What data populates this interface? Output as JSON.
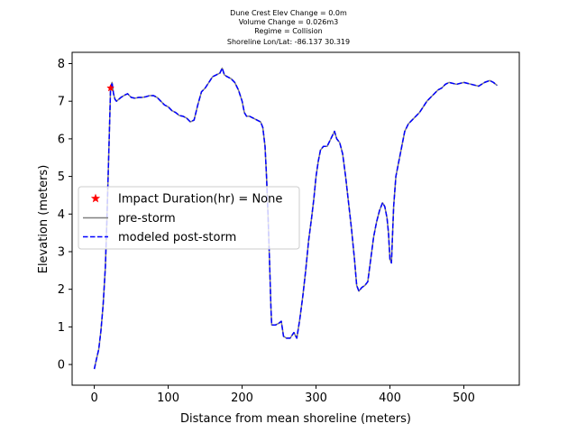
{
  "chart_data": {
    "type": "line",
    "title_lines": [
      "Dune Crest Elev Change = 0.0m",
      "Volume Change = 0.026m3",
      "Regime = Collision",
      "Shoreline Lon/Lat: -86.137 30.319"
    ],
    "xlabel": "Distance from mean shoreline (meters)",
    "ylabel": "Elevation (meters)",
    "xlim": [
      -30,
      575
    ],
    "ylim": [
      -0.55,
      8.3
    ],
    "xticks": [
      0,
      100,
      200,
      300,
      400,
      500
    ],
    "yticks": [
      0,
      1,
      2,
      3,
      4,
      5,
      6,
      7,
      8
    ],
    "grid": false,
    "legend_position": "center-left",
    "legend": [
      {
        "label": "Impact Duration(hr) = None",
        "marker": "star",
        "color": "#ff0000"
      },
      {
        "label": "pre-storm",
        "style": "solid",
        "color": "#808080"
      },
      {
        "label": "modeled post-storm",
        "style": "dashed",
        "color": "#0000ff"
      }
    ],
    "series": [
      {
        "name": "pre-storm",
        "color": "#808080",
        "style": "solid",
        "points": [
          [
            0,
            -0.12
          ],
          [
            3,
            0.15
          ],
          [
            6,
            0.4
          ],
          [
            9,
            0.9
          ],
          [
            12,
            1.6
          ],
          [
            15,
            2.6
          ],
          [
            17,
            3.8
          ],
          [
            19,
            5.2
          ],
          [
            21,
            6.6
          ],
          [
            22,
            7.35
          ],
          [
            24,
            7.5
          ],
          [
            26,
            7.2
          ],
          [
            28,
            7.05
          ],
          [
            30,
            7.0
          ],
          [
            33,
            7.05
          ],
          [
            36,
            7.1
          ],
          [
            40,
            7.15
          ],
          [
            45,
            7.2
          ],
          [
            50,
            7.1
          ],
          [
            55,
            7.08
          ],
          [
            60,
            7.1
          ],
          [
            65,
            7.1
          ],
          [
            70,
            7.12
          ],
          [
            75,
            7.15
          ],
          [
            80,
            7.15
          ],
          [
            85,
            7.1
          ],
          [
            90,
            7.0
          ],
          [
            95,
            6.9
          ],
          [
            100,
            6.85
          ],
          [
            105,
            6.75
          ],
          [
            110,
            6.7
          ],
          [
            115,
            6.62
          ],
          [
            120,
            6.6
          ],
          [
            125,
            6.55
          ],
          [
            130,
            6.45
          ],
          [
            135,
            6.5
          ],
          [
            140,
            6.9
          ],
          [
            145,
            7.25
          ],
          [
            150,
            7.35
          ],
          [
            155,
            7.5
          ],
          [
            160,
            7.65
          ],
          [
            165,
            7.7
          ],
          [
            170,
            7.75
          ],
          [
            173,
            7.88
          ],
          [
            176,
            7.7
          ],
          [
            180,
            7.65
          ],
          [
            185,
            7.6
          ],
          [
            190,
            7.5
          ],
          [
            195,
            7.3
          ],
          [
            200,
            7.0
          ],
          [
            203,
            6.7
          ],
          [
            206,
            6.6
          ],
          [
            210,
            6.6
          ],
          [
            215,
            6.55
          ],
          [
            220,
            6.5
          ],
          [
            225,
            6.45
          ],
          [
            228,
            6.3
          ],
          [
            231,
            5.8
          ],
          [
            233,
            5.0
          ],
          [
            235,
            4.0
          ],
          [
            237,
            2.8
          ],
          [
            239,
            1.5
          ],
          [
            240,
            1.05
          ],
          [
            245,
            1.05
          ],
          [
            250,
            1.1
          ],
          [
            253,
            1.15
          ],
          [
            256,
            0.75
          ],
          [
            260,
            0.7
          ],
          [
            265,
            0.7
          ],
          [
            270,
            0.85
          ],
          [
            274,
            0.7
          ],
          [
            278,
            1.2
          ],
          [
            282,
            1.8
          ],
          [
            286,
            2.5
          ],
          [
            290,
            3.3
          ],
          [
            294,
            3.9
          ],
          [
            297,
            4.4
          ],
          [
            300,
            5.0
          ],
          [
            303,
            5.4
          ],
          [
            306,
            5.7
          ],
          [
            310,
            5.8
          ],
          [
            315,
            5.8
          ],
          [
            320,
            6.0
          ],
          [
            325,
            6.2
          ],
          [
            328,
            6.0
          ],
          [
            332,
            5.9
          ],
          [
            336,
            5.6
          ],
          [
            340,
            5.0
          ],
          [
            344,
            4.3
          ],
          [
            348,
            3.6
          ],
          [
            352,
            2.8
          ],
          [
            355,
            2.1
          ],
          [
            358,
            1.95
          ],
          [
            362,
            2.05
          ],
          [
            366,
            2.1
          ],
          [
            370,
            2.2
          ],
          [
            374,
            2.8
          ],
          [
            378,
            3.4
          ],
          [
            382,
            3.8
          ],
          [
            386,
            4.1
          ],
          [
            390,
            4.3
          ],
          [
            393,
            4.2
          ],
          [
            396,
            3.9
          ],
          [
            398,
            3.5
          ],
          [
            400,
            2.8
          ],
          [
            402,
            2.7
          ],
          [
            405,
            4.2
          ],
          [
            408,
            5.0
          ],
          [
            412,
            5.4
          ],
          [
            416,
            5.8
          ],
          [
            420,
            6.2
          ],
          [
            425,
            6.4
          ],
          [
            430,
            6.5
          ],
          [
            435,
            6.6
          ],
          [
            440,
            6.7
          ],
          [
            445,
            6.85
          ],
          [
            450,
            7.0
          ],
          [
            455,
            7.1
          ],
          [
            460,
            7.2
          ],
          [
            465,
            7.3
          ],
          [
            470,
            7.35
          ],
          [
            475,
            7.45
          ],
          [
            480,
            7.5
          ],
          [
            490,
            7.45
          ],
          [
            500,
            7.5
          ],
          [
            510,
            7.45
          ],
          [
            520,
            7.4
          ],
          [
            528,
            7.5
          ],
          [
            535,
            7.55
          ],
          [
            540,
            7.5
          ],
          [
            545,
            7.42
          ]
        ]
      },
      {
        "name": "modeled post-storm",
        "color": "#0000ff",
        "style": "dashed",
        "points": [
          [
            0,
            -0.12
          ],
          [
            3,
            0.15
          ],
          [
            6,
            0.4
          ],
          [
            9,
            0.9
          ],
          [
            12,
            1.6
          ],
          [
            15,
            2.6
          ],
          [
            17,
            3.8
          ],
          [
            19,
            5.2
          ],
          [
            21,
            6.6
          ],
          [
            22,
            7.35
          ],
          [
            24,
            7.5
          ],
          [
            26,
            7.2
          ],
          [
            28,
            7.05
          ],
          [
            30,
            7.0
          ],
          [
            33,
            7.05
          ],
          [
            36,
            7.1
          ],
          [
            40,
            7.15
          ],
          [
            45,
            7.2
          ],
          [
            50,
            7.1
          ],
          [
            55,
            7.08
          ],
          [
            60,
            7.1
          ],
          [
            65,
            7.1
          ],
          [
            70,
            7.12
          ],
          [
            75,
            7.15
          ],
          [
            80,
            7.15
          ],
          [
            85,
            7.1
          ],
          [
            90,
            7.0
          ],
          [
            95,
            6.9
          ],
          [
            100,
            6.85
          ],
          [
            105,
            6.75
          ],
          [
            110,
            6.7
          ],
          [
            115,
            6.62
          ],
          [
            120,
            6.6
          ],
          [
            125,
            6.55
          ],
          [
            130,
            6.45
          ],
          [
            135,
            6.5
          ],
          [
            140,
            6.9
          ],
          [
            145,
            7.25
          ],
          [
            150,
            7.35
          ],
          [
            155,
            7.5
          ],
          [
            160,
            7.65
          ],
          [
            165,
            7.7
          ],
          [
            170,
            7.75
          ],
          [
            173,
            7.88
          ],
          [
            176,
            7.7
          ],
          [
            180,
            7.65
          ],
          [
            185,
            7.6
          ],
          [
            190,
            7.5
          ],
          [
            195,
            7.3
          ],
          [
            200,
            7.0
          ],
          [
            203,
            6.7
          ],
          [
            206,
            6.6
          ],
          [
            210,
            6.6
          ],
          [
            215,
            6.55
          ],
          [
            220,
            6.5
          ],
          [
            225,
            6.45
          ],
          [
            228,
            6.3
          ],
          [
            231,
            5.8
          ],
          [
            233,
            5.0
          ],
          [
            235,
            4.0
          ],
          [
            237,
            2.8
          ],
          [
            239,
            1.5
          ],
          [
            240,
            1.05
          ],
          [
            245,
            1.05
          ],
          [
            250,
            1.1
          ],
          [
            253,
            1.15
          ],
          [
            256,
            0.75
          ],
          [
            260,
            0.7
          ],
          [
            265,
            0.7
          ],
          [
            270,
            0.85
          ],
          [
            274,
            0.7
          ],
          [
            278,
            1.2
          ],
          [
            282,
            1.8
          ],
          [
            286,
            2.5
          ],
          [
            290,
            3.3
          ],
          [
            294,
            3.9
          ],
          [
            297,
            4.4
          ],
          [
            300,
            5.0
          ],
          [
            303,
            5.4
          ],
          [
            306,
            5.7
          ],
          [
            310,
            5.8
          ],
          [
            315,
            5.8
          ],
          [
            320,
            6.0
          ],
          [
            325,
            6.2
          ],
          [
            328,
            6.0
          ],
          [
            332,
            5.9
          ],
          [
            336,
            5.6
          ],
          [
            340,
            5.0
          ],
          [
            344,
            4.3
          ],
          [
            348,
            3.6
          ],
          [
            352,
            2.8
          ],
          [
            355,
            2.1
          ],
          [
            358,
            1.95
          ],
          [
            362,
            2.05
          ],
          [
            366,
            2.1
          ],
          [
            370,
            2.2
          ],
          [
            374,
            2.8
          ],
          [
            378,
            3.4
          ],
          [
            382,
            3.8
          ],
          [
            386,
            4.1
          ],
          [
            390,
            4.3
          ],
          [
            393,
            4.2
          ],
          [
            396,
            3.9
          ],
          [
            398,
            3.5
          ],
          [
            400,
            2.8
          ],
          [
            402,
            2.7
          ],
          [
            405,
            4.2
          ],
          [
            408,
            5.0
          ],
          [
            412,
            5.4
          ],
          [
            416,
            5.8
          ],
          [
            420,
            6.2
          ],
          [
            425,
            6.4
          ],
          [
            430,
            6.5
          ],
          [
            435,
            6.6
          ],
          [
            440,
            6.7
          ],
          [
            445,
            6.85
          ],
          [
            450,
            7.0
          ],
          [
            455,
            7.1
          ],
          [
            460,
            7.2
          ],
          [
            465,
            7.3
          ],
          [
            470,
            7.35
          ],
          [
            475,
            7.45
          ],
          [
            480,
            7.5
          ],
          [
            490,
            7.45
          ],
          [
            500,
            7.5
          ],
          [
            510,
            7.45
          ],
          [
            520,
            7.4
          ],
          [
            528,
            7.5
          ],
          [
            535,
            7.55
          ],
          [
            540,
            7.5
          ],
          [
            545,
            7.42
          ]
        ]
      }
    ],
    "markers": [
      {
        "name": "Impact Duration(hr) = None",
        "x": 22,
        "y": 7.35,
        "shape": "star",
        "color": "#ff0000"
      }
    ]
  }
}
